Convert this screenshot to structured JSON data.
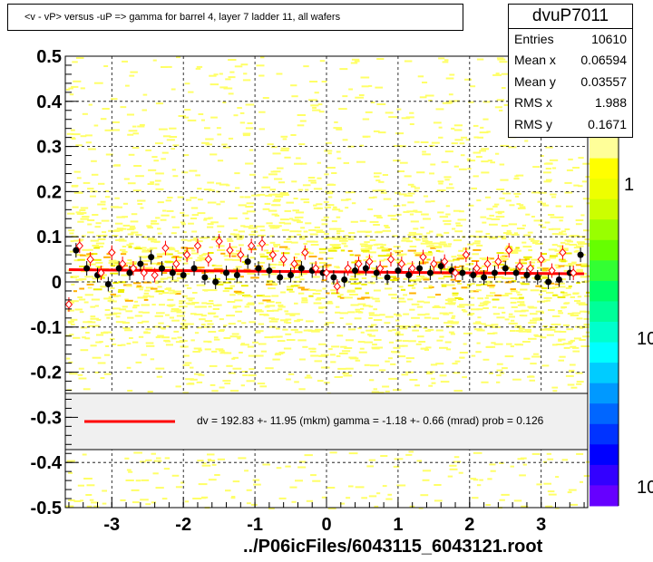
{
  "title": "<v - vP>       versus  -uP =>  gamma for barrel 4, layer 7 ladder 11, all wafers",
  "stats": {
    "name": "dvuP7011",
    "rows": [
      {
        "label": "Entries",
        "value": "10610"
      },
      {
        "label": "Mean x",
        "value": "0.06594"
      },
      {
        "label": "Mean y",
        "value": "0.03557"
      },
      {
        "label": "RMS x",
        "value": "1.988"
      },
      {
        "label": "RMS y",
        "value": "0.1671"
      }
    ]
  },
  "legend": {
    "text": "dv =  192.83 +- 11.95 (mkm) gamma =   -1.18 +-  0.66 (mrad) prob = 0.126",
    "line_color": "#ff0000"
  },
  "footer": "../P06icFiles/6043115_6043121.root",
  "colorbar": {
    "labels": [
      "1",
      "10",
      "10"
    ],
    "colors": [
      "#ffff99",
      "#ffff00",
      "#eeff00",
      "#ccff00",
      "#99ff00",
      "#66ff00",
      "#33ff33",
      "#00ff66",
      "#00ff99",
      "#00ffcc",
      "#00ffff",
      "#00ccff",
      "#0099ff",
      "#0066ff",
      "#0033ff",
      "#0000ff",
      "#3300ff",
      "#6600ff"
    ]
  },
  "colors": {
    "scatter_main": "#ffff66",
    "scatter_dense": "#eeee00",
    "scatter_warm": "#ffb000",
    "fit_line": "#ff0000",
    "black_markers": "#000000",
    "open_markers": "#ff0000"
  },
  "chart_data": {
    "type": "scatter",
    "xlabel": "",
    "ylabel": "",
    "xlim": [
      -3.65,
      3.65
    ],
    "ylim": [
      -0.5,
      0.5
    ],
    "x_ticks": [
      "-3",
      "-2",
      "-1",
      "0",
      "1",
      "2",
      "3"
    ],
    "y_ticks": [
      "-0.5",
      "-0.4",
      "-0.3",
      "-0.2",
      "-0.1",
      "0",
      "0.1",
      "0.2",
      "0.3",
      "0.4",
      "0.5"
    ],
    "grid": true,
    "fit_line": {
      "x": [
        -3.6,
        3.6
      ],
      "y": [
        0.027,
        0.018
      ]
    },
    "series": [
      {
        "marker": "filled-circle",
        "x": [
          -3.5,
          -3.35,
          -3.2,
          -3.05,
          -2.9,
          -2.75,
          -2.6,
          -2.45,
          -2.3,
          -2.15,
          -2.0,
          -1.85,
          -1.7,
          -1.55,
          -1.4,
          -1.25,
          -1.1,
          -0.95,
          -0.8,
          -0.65,
          -0.5,
          -0.35,
          -0.2,
          -0.05,
          0.1,
          0.25,
          0.4,
          0.55,
          0.7,
          0.85,
          1.0,
          1.15,
          1.3,
          1.45,
          1.6,
          1.75,
          1.9,
          2.05,
          2.2,
          2.35,
          2.5,
          2.65,
          2.8,
          2.95,
          3.1,
          3.25,
          3.4,
          3.55
        ],
        "y": [
          0.07,
          0.03,
          0.015,
          -0.005,
          0.03,
          0.02,
          0.04,
          0.055,
          0.03,
          0.02,
          0.015,
          0.03,
          0.01,
          0.0,
          0.02,
          0.015,
          0.045,
          0.03,
          0.025,
          0.01,
          0.015,
          0.03,
          0.025,
          0.02,
          0.01,
          0.005,
          0.025,
          0.03,
          0.02,
          0.01,
          0.025,
          0.015,
          0.03,
          0.02,
          0.035,
          0.025,
          0.02,
          0.015,
          0.01,
          0.02,
          0.03,
          0.02,
          0.015,
          0.01,
          0.0,
          0.005,
          0.02,
          0.06
        ]
      },
      {
        "marker": "open-diamond",
        "x": [
          -3.6,
          -3.45,
          -3.3,
          -3.15,
          -3.0,
          -2.85,
          -2.7,
          -2.55,
          -2.4,
          -2.25,
          -2.1,
          -1.95,
          -1.8,
          -1.65,
          -1.5,
          -1.35,
          -1.2,
          -1.05,
          -0.9,
          -0.75,
          -0.6,
          -0.45,
          -0.3,
          -0.15,
          0.0,
          0.15,
          0.3,
          0.45,
          0.6,
          0.75,
          0.9,
          1.05,
          1.2,
          1.35,
          1.5,
          1.65,
          1.8,
          1.95,
          2.1,
          2.25,
          2.4,
          2.55,
          2.7,
          2.85,
          3.0,
          3.15,
          3.3,
          3.45
        ],
        "y": [
          -0.05,
          0.08,
          0.05,
          0.02,
          0.065,
          0.04,
          0.03,
          0.02,
          0.015,
          0.075,
          0.04,
          0.06,
          0.08,
          0.05,
          0.09,
          0.07,
          0.06,
          0.08,
          0.085,
          0.06,
          0.05,
          0.04,
          0.065,
          0.03,
          0.02,
          -0.01,
          0.03,
          0.04,
          0.045,
          0.03,
          0.05,
          0.04,
          0.03,
          0.055,
          0.04,
          0.045,
          0.02,
          0.06,
          0.03,
          0.04,
          0.045,
          0.07,
          0.035,
          0.03,
          0.05,
          0.025,
          0.065,
          0.02
        ]
      }
    ]
  }
}
